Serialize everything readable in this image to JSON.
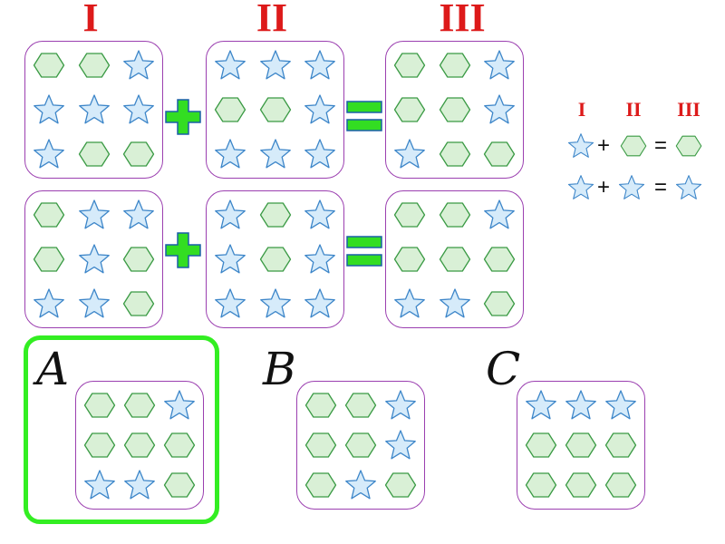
{
  "columns": [
    "I",
    "II",
    "III"
  ],
  "equations": [
    {
      "operand1": [
        "hex",
        "hex",
        "star",
        "star",
        "star",
        "star",
        "star",
        "hex",
        "hex"
      ],
      "operand2": [
        "star",
        "star",
        "star",
        "hex",
        "hex",
        "star",
        "star",
        "star",
        "star"
      ],
      "result": [
        "hex",
        "hex",
        "star",
        "hex",
        "hex",
        "star",
        "star",
        "hex",
        "hex"
      ]
    },
    {
      "operand1": [
        "hex",
        "star",
        "star",
        "hex",
        "star",
        "hex",
        "star",
        "star",
        "hex"
      ],
      "operand2": [
        "star",
        "hex",
        "star",
        "star",
        "hex",
        "star",
        "star",
        "star",
        "star"
      ],
      "result": [
        "hex",
        "hex",
        "star",
        "hex",
        "hex",
        "hex",
        "star",
        "star",
        "hex"
      ]
    }
  ],
  "operators": {
    "plus": "+",
    "equals": "="
  },
  "options": [
    {
      "letter": "A",
      "grid": [
        "hex",
        "hex",
        "star",
        "hex",
        "hex",
        "hex",
        "star",
        "star",
        "hex"
      ],
      "selected": true
    },
    {
      "letter": "B",
      "grid": [
        "hex",
        "hex",
        "star",
        "hex",
        "hex",
        "star",
        "hex",
        "star",
        "hex"
      ],
      "selected": false
    },
    {
      "letter": "C",
      "grid": [
        "star",
        "star",
        "star",
        "hex",
        "hex",
        "hex",
        "hex",
        "hex",
        "hex"
      ],
      "selected": false
    }
  ],
  "key": {
    "headers": [
      "I",
      "II",
      "III"
    ],
    "plus": "+",
    "equals": "=",
    "rules": [
      [
        "star",
        "hex",
        "hex"
      ],
      [
        "star",
        "star",
        "star"
      ]
    ]
  },
  "colors": {
    "star_fill": "#d6ebfa",
    "star_stroke": "#3d86c9",
    "hex_fill": "#d9f0d6",
    "hex_stroke": "#3a9a44",
    "operator": "#33dd22",
    "operator_stroke": "#1a5fa8",
    "roman": "#dd1a1a",
    "box_border": "#9b3fb0",
    "selection": "#33ee22"
  }
}
